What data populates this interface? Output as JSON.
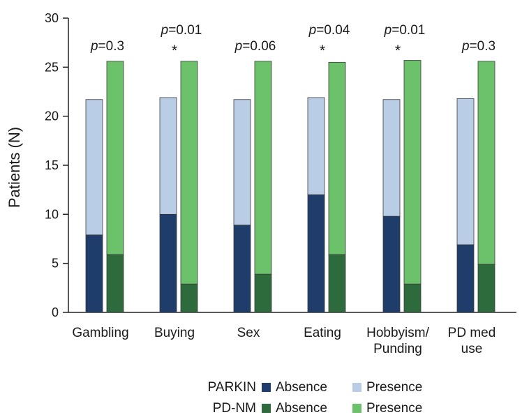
{
  "colors": {
    "parkin_absence": "#1f3d6b",
    "parkin_presence": "#b9cde7",
    "pdnm_absence": "#2e6b3c",
    "pdnm_presence": "#6cc26a"
  },
  "chart_data": {
    "type": "bar",
    "stacked": true,
    "ylabel": "Patients (N)",
    "xlabel": "",
    "ylim": [
      0,
      30
    ],
    "yticks": [
      0,
      5,
      10,
      15,
      20,
      25,
      30
    ],
    "grid": false,
    "categories": [
      "Gambling",
      "Buying",
      "Sex",
      "Eating",
      "Hobbyism/\nPunding",
      "PD med\nuse"
    ],
    "groups": [
      {
        "name": "PARKIN",
        "series": [
          {
            "name": "Absence",
            "values": [
              7.9,
              10.0,
              8.9,
              12.0,
              9.8,
              6.9
            ]
          },
          {
            "name": "Presence",
            "values": [
              13.8,
              11.9,
              12.8,
              9.9,
              11.9,
              14.9
            ]
          }
        ]
      },
      {
        "name": "PD-NM",
        "series": [
          {
            "name": "Absence",
            "values": [
              5.9,
              2.9,
              3.9,
              5.9,
              2.9,
              4.9
            ]
          },
          {
            "name": "Presence",
            "values": [
              19.7,
              22.7,
              21.7,
              19.6,
              22.8,
              20.7
            ]
          }
        ]
      }
    ],
    "annotations": [
      {
        "category": "Gambling",
        "p_label": "p",
        "p_value": "=0.3",
        "star": ""
      },
      {
        "category": "Buying",
        "p_label": "p",
        "p_value": "=0.01",
        "star": "*"
      },
      {
        "category": "Sex",
        "p_label": "p",
        "p_value": "=0.06",
        "star": ""
      },
      {
        "category": "Eating",
        "p_label": "p",
        "p_value": "=0.04",
        "star": "*"
      },
      {
        "category": "Hobbyism/\nPunding",
        "p_label": "p",
        "p_value": "=0.01",
        "star": "*"
      },
      {
        "category": "PD med\nuse",
        "p_label": "p",
        "p_value": "=0.3",
        "star": ""
      }
    ],
    "legend": {
      "placement": "bottom",
      "rows": [
        {
          "group": "PARKIN",
          "absence": "Absence",
          "presence": "Presence"
        },
        {
          "group": "PD-NM",
          "absence": "Absence",
          "presence": "Presence"
        }
      ]
    }
  }
}
